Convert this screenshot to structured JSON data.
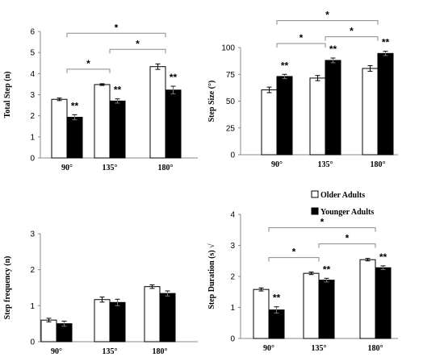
{
  "legend": {
    "older": "Older Adults",
    "younger": "Younger Adults"
  },
  "colors": {
    "older": "#ffffff",
    "younger": "#000000",
    "axis": "#888888"
  },
  "chart_data": [
    {
      "type": "bar",
      "ylabel": "Total Step (n)",
      "categories": [
        "90°",
        "135°",
        "180°"
      ],
      "ylim": [
        0,
        6
      ],
      "yticks": [
        0,
        1,
        2,
        3,
        4,
        5,
        6
      ],
      "series": [
        {
          "name": "Older Adults",
          "values": [
            2.78,
            3.48,
            4.33
          ],
          "errors": [
            0.06,
            0.04,
            0.13
          ]
        },
        {
          "name": "Younger Adults",
          "values": [
            1.93,
            2.7,
            3.22
          ],
          "errors": [
            0.12,
            0.1,
            0.18
          ]
        }
      ],
      "bar_annotations": [
        {
          "category": 0,
          "text": "**"
        },
        {
          "category": 1,
          "text": "**"
        },
        {
          "category": 2,
          "text": "**"
        }
      ],
      "brackets": [
        {
          "from": 0,
          "to": 1,
          "text": "*"
        },
        {
          "from": 1,
          "to": 2,
          "text": "*"
        },
        {
          "from": 0,
          "to": 2,
          "text": "*"
        }
      ]
    },
    {
      "type": "bar",
      "ylabel": "Step Size (°)",
      "categories": [
        "90°",
        "135°",
        "180°"
      ],
      "ylim": [
        0,
        100
      ],
      "yticks": [
        0,
        25,
        50,
        75,
        100
      ],
      "series": [
        {
          "name": "Older Adults",
          "values": [
            60.5,
            71.5,
            80.5
          ],
          "errors": [
            2.6,
            2.4,
            2.6
          ]
        },
        {
          "name": "Younger Adults",
          "values": [
            73,
            88,
            94.5
          ],
          "errors": [
            2.0,
            2.2,
            2.0
          ]
        }
      ],
      "bar_annotations": [
        {
          "category": 0,
          "text": "**"
        },
        {
          "category": 1,
          "text": "**"
        },
        {
          "category": 2,
          "text": "**"
        }
      ],
      "brackets": [
        {
          "from": 0,
          "to": 1,
          "text": "*"
        },
        {
          "from": 1,
          "to": 2,
          "text": "*"
        },
        {
          "from": 0,
          "to": 2,
          "text": "*"
        }
      ]
    },
    {
      "type": "bar",
      "ylabel": "Step frequency (n)",
      "categories": [
        "90°",
        "135°",
        "180°"
      ],
      "ylim": [
        0,
        3
      ],
      "yticks": [
        0,
        1,
        2,
        3
      ],
      "series": [
        {
          "name": "Older Adults",
          "values": [
            0.6,
            1.17,
            1.53
          ],
          "errors": [
            0.05,
            0.07,
            0.05
          ]
        },
        {
          "name": "Younger Adults",
          "values": [
            0.5,
            1.09,
            1.34
          ],
          "errors": [
            0.07,
            0.09,
            0.07
          ]
        }
      ],
      "bar_annotations": [],
      "brackets": []
    },
    {
      "type": "bar",
      "ylabel": "Step Duration (s) √",
      "categories": [
        "90°",
        "135°",
        "180°"
      ],
      "ylim": [
        0,
        4
      ],
      "yticks": [
        0,
        1,
        2,
        3,
        4
      ],
      "series": [
        {
          "name": "Older Adults",
          "values": [
            1.58,
            2.1,
            2.54
          ],
          "errors": [
            0.05,
            0.04,
            0.04
          ]
        },
        {
          "name": "Younger Adults",
          "values": [
            0.92,
            1.88,
            2.28
          ],
          "errors": [
            0.1,
            0.06,
            0.06
          ]
        }
      ],
      "bar_annotations": [
        {
          "category": 0,
          "text": "**"
        },
        {
          "category": 1,
          "text": "**"
        },
        {
          "category": 2,
          "text": "**"
        }
      ],
      "brackets": [
        {
          "from": 0,
          "to": 1,
          "text": "*"
        },
        {
          "from": 1,
          "to": 2,
          "text": "*"
        },
        {
          "from": 0,
          "to": 2,
          "text": "*"
        }
      ]
    }
  ]
}
